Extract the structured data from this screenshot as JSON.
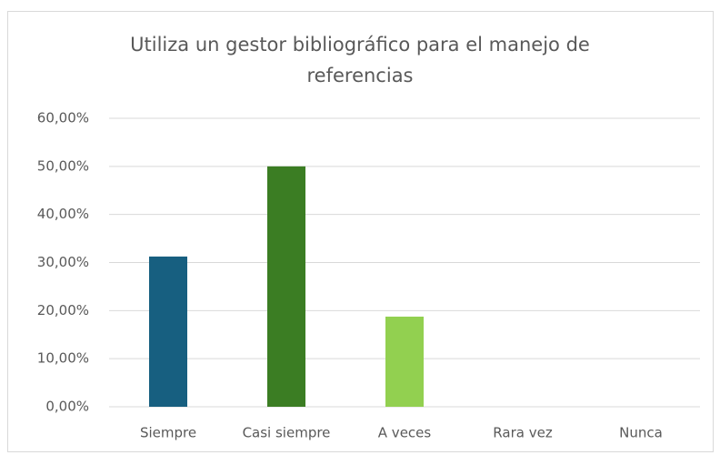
{
  "chart_data": {
    "type": "bar",
    "title": "Utiliza un gestor bibliográfico para el manejo de referencias",
    "categories": [
      "Siempre",
      "Casi siempre",
      "A veces",
      "Rara vez",
      "Nunca"
    ],
    "values": [
      31.25,
      50,
      18.75,
      0,
      0
    ],
    "colors": [
      "#175f80",
      "#3b7d23",
      "#92d050",
      "#a5a5a5",
      "#5b9bd5"
    ],
    "ylim": [
      0,
      60
    ],
    "yticks": [
      {
        "value": 0,
        "label": "0,00%"
      },
      {
        "value": 10,
        "label": "10,00%"
      },
      {
        "value": 20,
        "label": "20,00%"
      },
      {
        "value": 30,
        "label": "30,00%"
      },
      {
        "value": 40,
        "label": "40,00%"
      },
      {
        "value": 50,
        "label": "50,00%"
      },
      {
        "value": 60,
        "label": "60,00%"
      }
    ],
    "grid": true
  }
}
